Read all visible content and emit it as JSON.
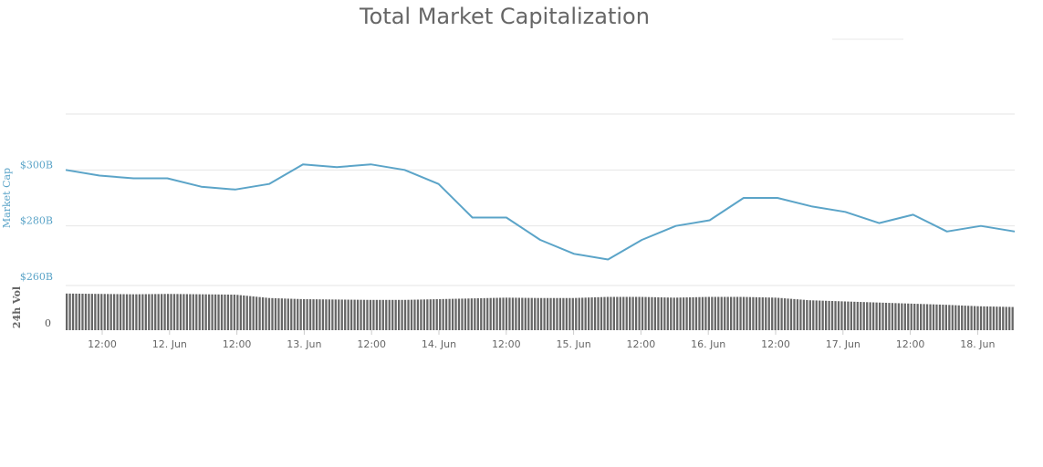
{
  "chart_data": {
    "type": "line",
    "title": "Total Market Capitalization",
    "ylabel": "Market Cap",
    "volume_label": "24h Vol",
    "line_color": "#5ba4c8",
    "volume_color": "#666666",
    "grid": true,
    "x_ticks": [
      "12:00",
      "12. Jun",
      "12:00",
      "13. Jun",
      "12:00",
      "14. Jun",
      "12:00",
      "15. Jun",
      "12:00",
      "16. Jun",
      "12:00",
      "17. Jun",
      "12:00",
      "18. Jun"
    ],
    "y_ticks": [
      "$300B",
      "$280B",
      "$260B"
    ],
    "y_tick_values": [
      300,
      280,
      260
    ],
    "volume_ticks": [
      "0"
    ],
    "ylim": [
      260,
      320
    ],
    "x_start": "11 Jun 06:00",
    "x_end": "18 Jun 10:00",
    "x": [
      0,
      0.25,
      0.5,
      0.75,
      1,
      1.25,
      1.5,
      1.75,
      2,
      2.25,
      2.5,
      2.75,
      3,
      3.25,
      3.5,
      3.75,
      4,
      4.25,
      4.5,
      4.75,
      5,
      5.25,
      5.5,
      5.75,
      6,
      6.25,
      6.5,
      6.75,
      7
    ],
    "series": [
      {
        "values": [
          300,
          298,
          297,
          297,
          294,
          293,
          295,
          302,
          301,
          302,
          300,
          295,
          283,
          283,
          275,
          270,
          268,
          275,
          280,
          282,
          290,
          290,
          287,
          285,
          281,
          284,
          278,
          280,
          278
        ]
      }
    ],
    "volume": [
      0.98,
      0.97,
      0.96,
      0.97,
      0.96,
      0.95,
      0.86,
      0.83,
      0.82,
      0.81,
      0.81,
      0.83,
      0.85,
      0.87,
      0.86,
      0.86,
      0.89,
      0.89,
      0.87,
      0.89,
      0.89,
      0.87,
      0.8,
      0.77,
      0.74,
      0.71,
      0.68,
      0.64,
      0.62
    ]
  }
}
